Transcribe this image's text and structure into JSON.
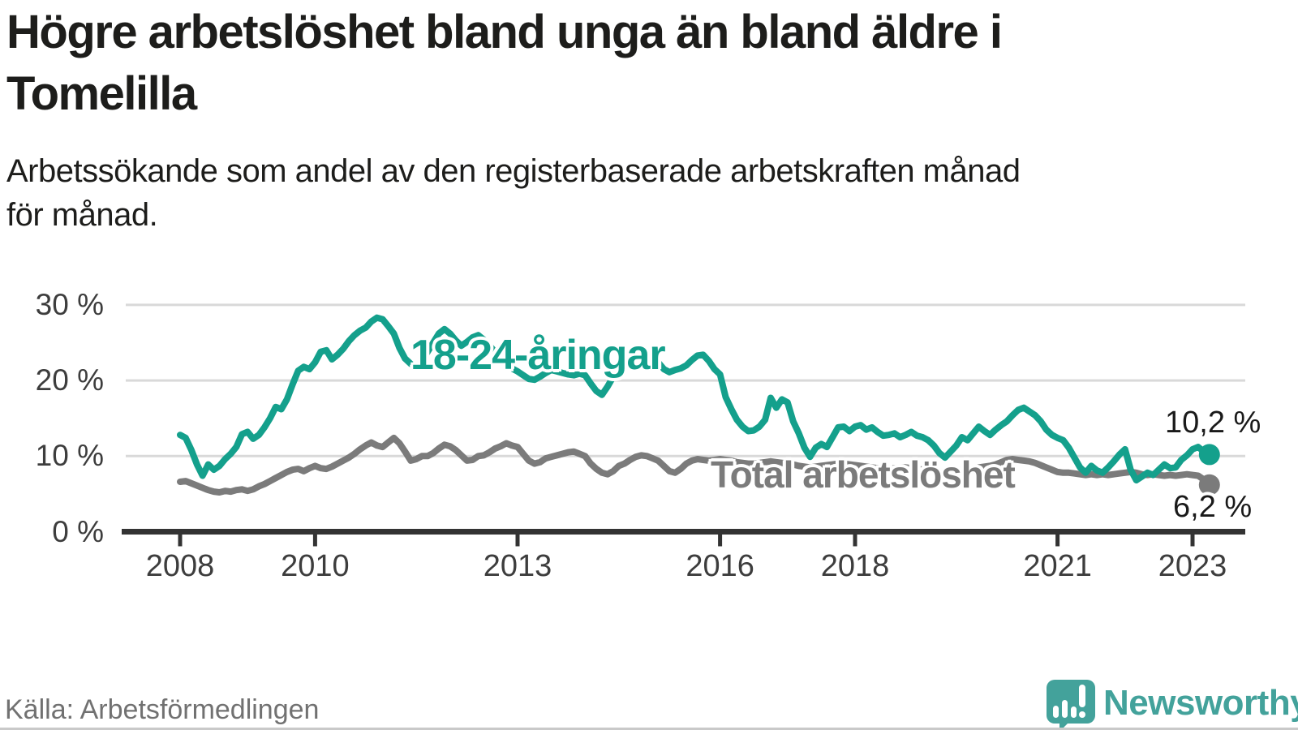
{
  "header": {
    "title": "Högre arbetslöshet bland unga än bland äldre i\nTomelilla",
    "subtitle": "Arbetssökande som andel av den registerbaserade arbetskraften månad\nför månad."
  },
  "footer": {
    "source": "Källa: Arbetsförmedlingen",
    "logo_text": "Newsworthy",
    "logo_icon": "speech-bubble-bar-chart-icon"
  },
  "colors": {
    "accent_teal": "#14a08c",
    "series_gray": "#7b7b7b",
    "title_text": "#1d1d1b",
    "axis_text": "#3d3d3d",
    "value_text": "#1a1a1a",
    "gridline": "#d9d9d9",
    "axis_line": "#333333",
    "source_text": "#717171",
    "logo_teal": "#43a29b",
    "background": "#ffffff"
  },
  "chart_data": {
    "type": "line",
    "title": "Högre arbetslöshet bland unga än bland äldre i Tomelilla",
    "xlabel": "",
    "ylabel": "Arbetssökande som andel av den registerbaserade arbetskraften",
    "unit": "%",
    "x_start": "2008-01",
    "x_end": "2023-04",
    "x_step_months": 1,
    "x_ticks": [
      "2008",
      "2010",
      "2013",
      "2016",
      "2018",
      "2021",
      "2023"
    ],
    "x_tick_years": [
      2008,
      2010,
      2013,
      2016,
      2018,
      2021,
      2023
    ],
    "y_ticks": [
      {
        "value": 0,
        "label": "0 %"
      },
      {
        "value": 10,
        "label": "10 %"
      },
      {
        "value": 20,
        "label": "20 %"
      },
      {
        "value": 30,
        "label": "30 %"
      }
    ],
    "ylim": [
      0,
      32
    ],
    "grid": "horizontal",
    "legend_position": "inline-labels",
    "series": [
      {
        "name": "18-24-åringar",
        "color": "#14a08c",
        "end_label": "10,2 %",
        "end_value": 10.2,
        "values": [
          12.8,
          12.4,
          10.8,
          8.9,
          7.4,
          8.9,
          8.2,
          8.7,
          9.6,
          10.3,
          11.2,
          12.9,
          13.2,
          12.3,
          12.8,
          13.8,
          15.0,
          16.5,
          16.2,
          17.5,
          19.5,
          21.3,
          21.8,
          21.5,
          22.4,
          23.8,
          24.0,
          22.8,
          23.4,
          24.2,
          25.2,
          26.0,
          26.6,
          27.0,
          27.8,
          28.3,
          28.1,
          27.2,
          26.2,
          24.3,
          22.9,
          22.2,
          21.7,
          22.6,
          23.8,
          25.0,
          26.2,
          26.8,
          26.2,
          25.3,
          24.6,
          25.1,
          25.7,
          26.0,
          25.4,
          24.6,
          23.8,
          22.9,
          22.1,
          21.6,
          21.2,
          20.7,
          20.2,
          20.1,
          20.5,
          21.0,
          21.4,
          21.2,
          21.0,
          20.8,
          20.7,
          20.9,
          20.7,
          19.6,
          18.6,
          18.1,
          19.2,
          20.5,
          21.8,
          22.0,
          22.5,
          23.0,
          23.4,
          23.2,
          22.9,
          22.4,
          21.5,
          21.1,
          21.4,
          21.6,
          22.0,
          22.7,
          23.3,
          23.4,
          22.6,
          21.5,
          20.8,
          17.8,
          16.2,
          14.8,
          13.9,
          13.3,
          13.4,
          13.9,
          14.8,
          17.7,
          16.4,
          17.5,
          17.1,
          14.6,
          13.0,
          11.1,
          9.9,
          11.1,
          11.6,
          11.2,
          12.5,
          13.8,
          13.9,
          13.3,
          13.9,
          14.1,
          13.5,
          13.8,
          13.2,
          12.7,
          12.8,
          13.0,
          12.5,
          12.8,
          13.2,
          12.7,
          12.5,
          12.1,
          11.4,
          10.4,
          9.8,
          10.6,
          11.4,
          12.5,
          12.1,
          13.0,
          13.9,
          13.3,
          12.8,
          13.5,
          14.1,
          14.6,
          15.4,
          16.1,
          16.4,
          15.9,
          15.4,
          14.6,
          13.5,
          12.8,
          12.4,
          12.1,
          11.1,
          9.8,
          8.5,
          7.8,
          8.7,
          8.1,
          7.8,
          8.5,
          9.3,
          10.2,
          10.9,
          8.2,
          6.8,
          7.3,
          7.8,
          7.5,
          8.2,
          8.9,
          8.4,
          8.5,
          9.5,
          10.1,
          10.9,
          11.2,
          10.6,
          10.2
        ]
      },
      {
        "name": "Total arbetslöshet",
        "color": "#7b7b7b",
        "end_label": "6,2 %",
        "end_value": 6.2,
        "values": [
          6.6,
          6.7,
          6.4,
          6.1,
          5.8,
          5.5,
          5.3,
          5.2,
          5.4,
          5.3,
          5.5,
          5.6,
          5.4,
          5.6,
          6.0,
          6.3,
          6.7,
          7.1,
          7.5,
          7.9,
          8.2,
          8.3,
          8.0,
          8.4,
          8.7,
          8.4,
          8.3,
          8.6,
          9.0,
          9.4,
          9.8,
          10.3,
          10.9,
          11.4,
          11.8,
          11.4,
          11.2,
          11.8,
          12.4,
          11.7,
          10.6,
          9.4,
          9.6,
          10.0,
          10.0,
          10.4,
          11.0,
          11.5,
          11.3,
          10.8,
          10.1,
          9.4,
          9.5,
          10.0,
          10.1,
          10.5,
          11.0,
          11.3,
          11.7,
          11.4,
          11.2,
          10.3,
          9.4,
          9.0,
          9.2,
          9.7,
          9.9,
          10.1,
          10.3,
          10.5,
          10.6,
          10.3,
          10.0,
          9.0,
          8.3,
          7.8,
          7.6,
          8.0,
          8.7,
          9.0,
          9.5,
          9.9,
          10.1,
          10.0,
          9.7,
          9.4,
          8.7,
          8.0,
          7.8,
          8.3,
          9.0,
          9.4,
          9.6,
          9.5,
          9.4,
          9.5,
          9.6,
          9.5,
          9.4,
          9.2,
          9.1,
          9.0,
          9.0,
          9.1,
          9.2,
          9.3,
          9.2,
          9.1,
          9.0,
          8.9,
          8.7,
          8.6,
          8.5,
          8.6,
          8.7,
          8.8,
          8.9,
          9.0,
          9.0,
          8.9,
          8.8,
          8.7,
          8.6,
          8.5,
          8.4,
          8.3,
          8.3,
          8.4,
          8.5,
          8.5,
          8.4,
          8.3,
          8.2,
          8.1,
          8.0,
          7.9,
          7.9,
          8.0,
          8.1,
          8.2,
          8.3,
          8.4,
          8.5,
          8.6,
          8.7,
          8.9,
          9.2,
          9.5,
          9.6,
          9.5,
          9.4,
          9.3,
          9.1,
          8.8,
          8.5,
          8.2,
          7.9,
          7.8,
          7.8,
          7.7,
          7.6,
          7.5,
          7.6,
          7.5,
          7.6,
          7.5,
          7.6,
          7.7,
          7.8,
          7.9,
          7.8,
          7.6,
          7.5,
          7.6,
          7.5,
          7.4,
          7.5,
          7.4,
          7.5,
          7.6,
          7.5,
          7.4,
          6.9,
          6.2
        ]
      }
    ]
  }
}
